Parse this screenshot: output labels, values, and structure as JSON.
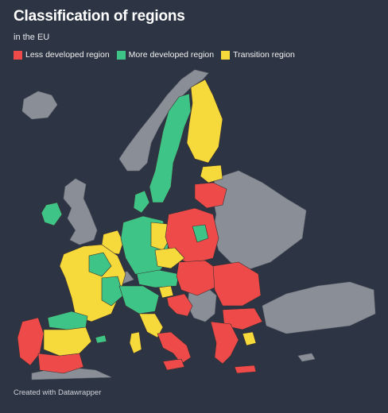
{
  "title": "Classification of regions",
  "subtitle": "in the EU",
  "legend": [
    {
      "label": "Less developed region",
      "color": "#ef4a4a"
    },
    {
      "label": "More developed region",
      "color": "#3ec487"
    },
    {
      "label": "Transition region",
      "color": "#f6d93a"
    }
  ],
  "colors": {
    "non_eu": "#8a8e96",
    "background": "#2d3443"
  },
  "footer": "Created with Datawrapper"
}
